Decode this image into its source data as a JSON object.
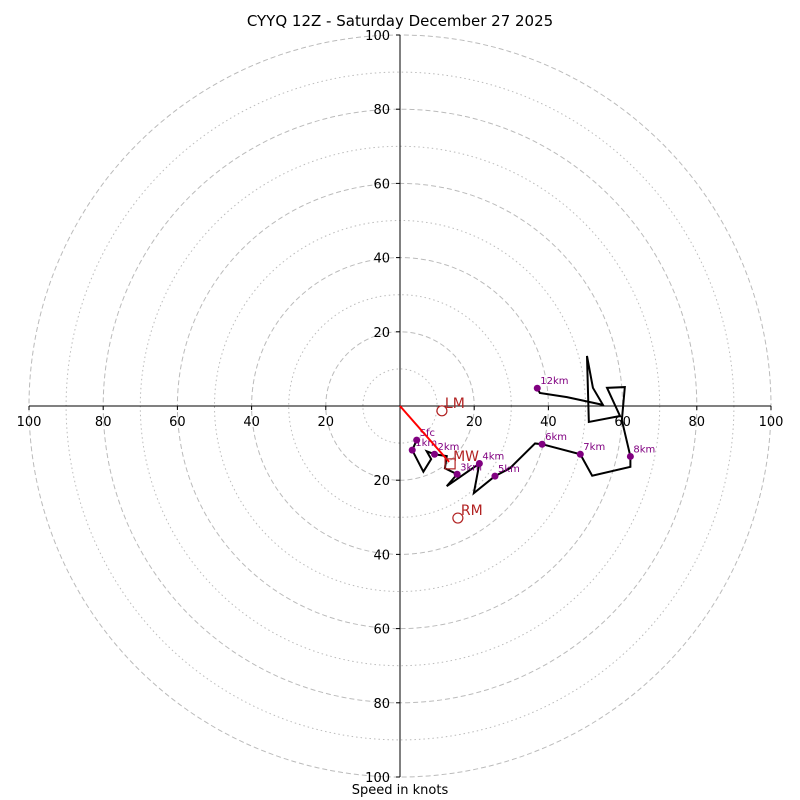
{
  "chart_data": {
    "type": "scatter",
    "subtype": "hodograph",
    "title": "CYYQ 12Z - Saturday December 27 2025",
    "xlabel": "Speed in knots",
    "ylabel": "",
    "range": [
      -100,
      100
    ],
    "rings_major": [
      20,
      40,
      60,
      80,
      100
    ],
    "rings_minor": [
      10,
      30,
      50,
      70,
      90
    ],
    "x_tick_labels": [
      "100",
      "80",
      "60",
      "40",
      "20",
      "20",
      "40",
      "60",
      "80",
      "100"
    ],
    "x_tick_values": [
      -100,
      -80,
      -60,
      -40,
      -20,
      20,
      40,
      60,
      80,
      100
    ],
    "y_tick_labels": [
      "100",
      "80",
      "60",
      "40",
      "20",
      "20",
      "40",
      "60",
      "80",
      "100"
    ],
    "y_tick_values": [
      100,
      80,
      60,
      40,
      20,
      -20,
      -40,
      -60,
      -80,
      -100
    ],
    "grid": true,
    "profile": {
      "name": "wind profile",
      "u": [
        4.5,
        3.3,
        6.3,
        8.4,
        7.2,
        9.3,
        12.6,
        12.1,
        15.4,
        12.6,
        21.4,
        19.9,
        25.6,
        29.6,
        36.4,
        38.3,
        48.6,
        51.8,
        62.1,
        62.1,
        59.8,
        60.6,
        55.8,
        59.3,
        50.9,
        50.4,
        52.0,
        54.7,
        45.0,
        37.7,
        37.0
      ],
      "v": [
        -9.2,
        -11.9,
        -17.7,
        -14.3,
        -12.2,
        -13.0,
        -13.5,
        -16.8,
        -18.4,
        -21.6,
        -15.5,
        -23.5,
        -18.9,
        -16.8,
        -10.1,
        -10.3,
        -13.0,
        -18.8,
        -16.4,
        -13.6,
        -3.8,
        5.1,
        4.9,
        -2.7,
        -4.3,
        13.5,
        4.9,
        0.3,
        2.4,
        3.5,
        4.8
      ]
    },
    "height_markers": [
      {
        "label": "Sfc",
        "u": 4.5,
        "v": -9.2
      },
      {
        "label": "1km",
        "u": 3.3,
        "v": -11.9
      },
      {
        "label": "2km",
        "u": 9.3,
        "v": -13.0
      },
      {
        "label": "3km",
        "u": 15.4,
        "v": -18.4
      },
      {
        "label": "4km",
        "u": 21.4,
        "v": -15.5
      },
      {
        "label": "5km",
        "u": 25.6,
        "v": -18.9
      },
      {
        "label": "6km",
        "u": 38.3,
        "v": -10.3
      },
      {
        "label": "7km",
        "u": 48.6,
        "v": -13.0
      },
      {
        "label": "8km",
        "u": 62.1,
        "v": -13.6
      },
      {
        "label": "12km",
        "u": 37.0,
        "v": 4.8
      }
    ],
    "storm_motion": [
      {
        "label": "LM",
        "u": 11.3,
        "v": -1.3,
        "marker": "circle"
      },
      {
        "label": "MW",
        "u": 13.5,
        "v": -15.6,
        "marker": "square"
      },
      {
        "label": "RM",
        "u": 15.6,
        "v": -30.2,
        "marker": "circle"
      }
    ],
    "colors": {
      "profile": "#000000",
      "markers": "#800080",
      "storm": "#b22222",
      "arrow": "#ff0000",
      "grid": "#bbbbbb"
    }
  }
}
